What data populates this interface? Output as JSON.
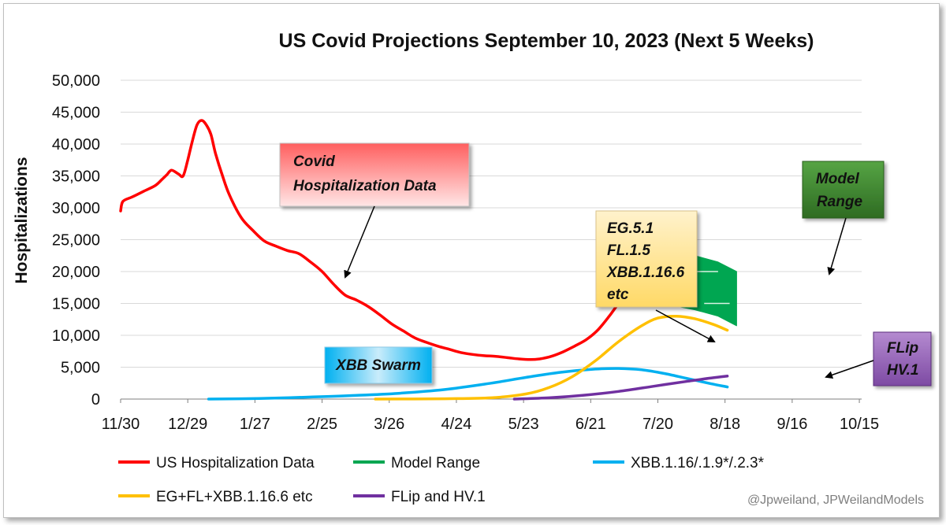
{
  "chart_data": {
    "type": "line",
    "title": "US Covid Projections September 10, 2023 (Next 5 Weeks)",
    "ylabel": "Hospitalizations",
    "xlabel": "",
    "ylim": [
      0,
      50000
    ],
    "y_ticks": [
      0,
      5000,
      10000,
      15000,
      20000,
      25000,
      30000,
      35000,
      40000,
      45000,
      50000
    ],
    "y_tick_labels": [
      "0",
      "5,000",
      "10,000",
      "15,000",
      "20,000",
      "25,000",
      "30,000",
      "35,000",
      "40,000",
      "45,000",
      "50,000"
    ],
    "x_tick_labels": [
      "11/30",
      "12/29",
      "1/27",
      "2/25",
      "3/26",
      "4/24",
      "5/23",
      "6/21",
      "7/20",
      "8/18",
      "9/16",
      "10/15"
    ],
    "grid": "horizontal",
    "legend_position": "bottom",
    "series": [
      {
        "name": "US Hospitalization Data",
        "color": "#ff0000",
        "points": [
          [
            0,
            29500
          ],
          [
            1,
            31000
          ],
          [
            5,
            31700
          ],
          [
            10,
            32600
          ],
          [
            15,
            33500
          ],
          [
            18,
            34500
          ],
          [
            20,
            35200
          ],
          [
            22,
            35900
          ],
          [
            25,
            35300
          ],
          [
            27,
            35000
          ],
          [
            29,
            37500
          ],
          [
            31,
            40500
          ],
          [
            33,
            43000
          ],
          [
            35,
            43700
          ],
          [
            37,
            43000
          ],
          [
            39,
            41500
          ],
          [
            41,
            38500
          ],
          [
            44,
            35000
          ],
          [
            47,
            32000
          ],
          [
            52,
            28500
          ],
          [
            57,
            26500
          ],
          [
            62,
            24800
          ],
          [
            67,
            24000
          ],
          [
            72,
            23300
          ],
          [
            77,
            22800
          ],
          [
            82,
            21500
          ],
          [
            87,
            20000
          ],
          [
            92,
            18000
          ],
          [
            97,
            16300
          ],
          [
            102,
            15500
          ],
          [
            107,
            14500
          ],
          [
            112,
            13200
          ],
          [
            117,
            11800
          ],
          [
            122,
            10700
          ],
          [
            127,
            9600
          ],
          [
            132,
            8900
          ],
          [
            137,
            8300
          ],
          [
            142,
            7800
          ],
          [
            147,
            7300
          ],
          [
            152,
            7000
          ],
          [
            157,
            6800
          ],
          [
            162,
            6700
          ],
          [
            167,
            6500
          ],
          [
            172,
            6300
          ],
          [
            177,
            6200
          ],
          [
            181,
            6300
          ],
          [
            186,
            6700
          ],
          [
            191,
            7400
          ],
          [
            196,
            8300
          ],
          [
            201,
            9300
          ],
          [
            206,
            10800
          ],
          [
            211,
            13000
          ],
          [
            216,
            15500
          ],
          [
            220,
            17200
          ]
        ]
      },
      {
        "name": "Model Range",
        "color": "#00a651",
        "upper": [
          [
            220,
            17200
          ],
          [
            228,
            20000
          ],
          [
            238,
            22000
          ],
          [
            248,
            22500
          ],
          [
            258,
            21500
          ],
          [
            266,
            20000
          ]
        ],
        "lower": [
          [
            220,
            17200
          ],
          [
            228,
            15700
          ],
          [
            238,
            14700
          ],
          [
            248,
            14000
          ],
          [
            258,
            13000
          ],
          [
            266,
            11500
          ]
        ],
        "inner_lines": [
          [
            [
              233,
              20000
            ],
            [
              258,
              20000
            ]
          ],
          [
            [
              252,
              15000
            ],
            [
              263,
              15000
            ]
          ]
        ]
      },
      {
        "name": "XBB.1.16/.1.9*/.2.3*",
        "color": "#00b0f0",
        "points": [
          [
            38,
            0
          ],
          [
            60,
            100
          ],
          [
            80,
            300
          ],
          [
            100,
            550
          ],
          [
            120,
            900
          ],
          [
            140,
            1500
          ],
          [
            160,
            2500
          ],
          [
            175,
            3400
          ],
          [
            190,
            4200
          ],
          [
            205,
            4700
          ],
          [
            215,
            4800
          ],
          [
            225,
            4600
          ],
          [
            235,
            4000
          ],
          [
            245,
            3200
          ],
          [
            255,
            2400
          ],
          [
            262,
            1900
          ]
        ]
      },
      {
        "name": "EG+FL+XBB.1.16.6 etc",
        "color": "#ffc000",
        "points": [
          [
            110,
            0
          ],
          [
            140,
            50
          ],
          [
            160,
            200
          ],
          [
            175,
            800
          ],
          [
            185,
            1800
          ],
          [
            195,
            3500
          ],
          [
            205,
            6000
          ],
          [
            215,
            9000
          ],
          [
            225,
            11500
          ],
          [
            232,
            12700
          ],
          [
            240,
            13000
          ],
          [
            248,
            12600
          ],
          [
            256,
            11700
          ],
          [
            262,
            10800
          ]
        ]
      },
      {
        "name": "FLip and HV.1",
        "color": "#7030a0",
        "points": [
          [
            170,
            0
          ],
          [
            185,
            200
          ],
          [
            200,
            600
          ],
          [
            215,
            1200
          ],
          [
            230,
            2000
          ],
          [
            245,
            2800
          ],
          [
            255,
            3300
          ],
          [
            262,
            3600
          ]
        ]
      }
    ],
    "annotations": [
      {
        "text": "Covid Hospitalization Data"
      },
      {
        "text": "XBB Swarm"
      },
      {
        "text": "EG.5.1 FL.1.5 XBB.1.16.6 etc"
      },
      {
        "text": "Model Range"
      },
      {
        "text": "FLip HV.1"
      }
    ]
  },
  "annotations_text": {
    "covid": [
      "Covid",
      "Hospitalization Data"
    ],
    "xbb": [
      "XBB Swarm"
    ],
    "eg": [
      "EG.5.1",
      "FL.1.5",
      "XBB.1.16.6",
      "etc"
    ],
    "model": [
      "Model",
      "Range"
    ],
    "flip": [
      "FLip",
      "HV.1"
    ]
  },
  "legend": [
    {
      "label": "US Hospitalization Data",
      "color": "#ff0000"
    },
    {
      "label": "Model Range",
      "color": "#00a651"
    },
    {
      "label": "XBB.1.16/.1.9*/.2.3*",
      "color": "#00b0f0"
    },
    {
      "label": "EG+FL+XBB.1.16.6 etc",
      "color": "#ffc000"
    },
    {
      "label": "FLip and HV.1",
      "color": "#7030a0"
    }
  ],
  "credit": "@Jpweiland, JPWeilandModels"
}
